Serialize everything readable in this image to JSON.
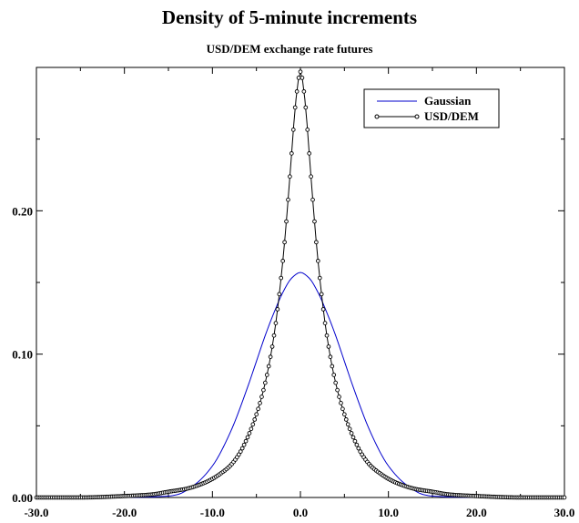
{
  "chart_data": {
    "type": "line",
    "title": "Density of 5-minute increments",
    "subtitle": "USD/DEM exchange rate futures",
    "xlabel": "",
    "ylabel": "",
    "xlim": [
      -30,
      30
    ],
    "ylim": [
      0,
      0.3
    ],
    "x_ticks": [
      -30,
      -20,
      -10,
      0,
      10,
      20,
      30
    ],
    "x_tick_labels": [
      "-30.0",
      "-20.0",
      "-10.0",
      "0.0",
      "10.0",
      "20.0",
      "30.0"
    ],
    "y_ticks": [
      0,
      0.1,
      0.2
    ],
    "y_tick_labels": [
      "0.00",
      "0.10",
      "0.20"
    ],
    "grid": false,
    "legend_position": "top-right",
    "series": [
      {
        "name": "Gaussian",
        "color": "#0000cc",
        "marker": "none",
        "x": [
          -30,
          -20,
          -15,
          -14,
          -12,
          -10,
          -8,
          -6,
          -5,
          -4,
          -3,
          -2,
          -1,
          0,
          1,
          2,
          3,
          4,
          5,
          6,
          8,
          10,
          12,
          14,
          15,
          20,
          30
        ],
        "y": [
          0.0,
          0.0,
          0.001,
          0.002,
          0.009,
          0.022,
          0.045,
          0.077,
          0.095,
          0.113,
          0.129,
          0.143,
          0.153,
          0.157,
          0.153,
          0.143,
          0.129,
          0.113,
          0.095,
          0.077,
          0.045,
          0.022,
          0.009,
          0.002,
          0.001,
          0.0,
          0.0
        ]
      },
      {
        "name": "USD/DEM",
        "color": "#000000",
        "marker": "circle",
        "x": [
          -30,
          -25,
          -20,
          -17,
          -15,
          -13,
          -11,
          -10,
          -9,
          -8,
          -7,
          -6,
          -5,
          -4,
          -3,
          -2,
          -1.5,
          -1,
          -0.5,
          0,
          0.5,
          1,
          1.5,
          2,
          3,
          4,
          5,
          6,
          7,
          8,
          9,
          10,
          11,
          13,
          15,
          17,
          20,
          25,
          30
        ],
        "y": [
          0.0,
          0.0,
          0.001,
          0.002,
          0.004,
          0.006,
          0.01,
          0.013,
          0.017,
          0.022,
          0.03,
          0.042,
          0.058,
          0.08,
          0.113,
          0.165,
          0.2,
          0.24,
          0.278,
          0.297,
          0.278,
          0.24,
          0.2,
          0.165,
          0.113,
          0.08,
          0.058,
          0.042,
          0.03,
          0.022,
          0.017,
          0.013,
          0.01,
          0.006,
          0.004,
          0.002,
          0.001,
          0.0,
          0.0
        ]
      }
    ]
  }
}
